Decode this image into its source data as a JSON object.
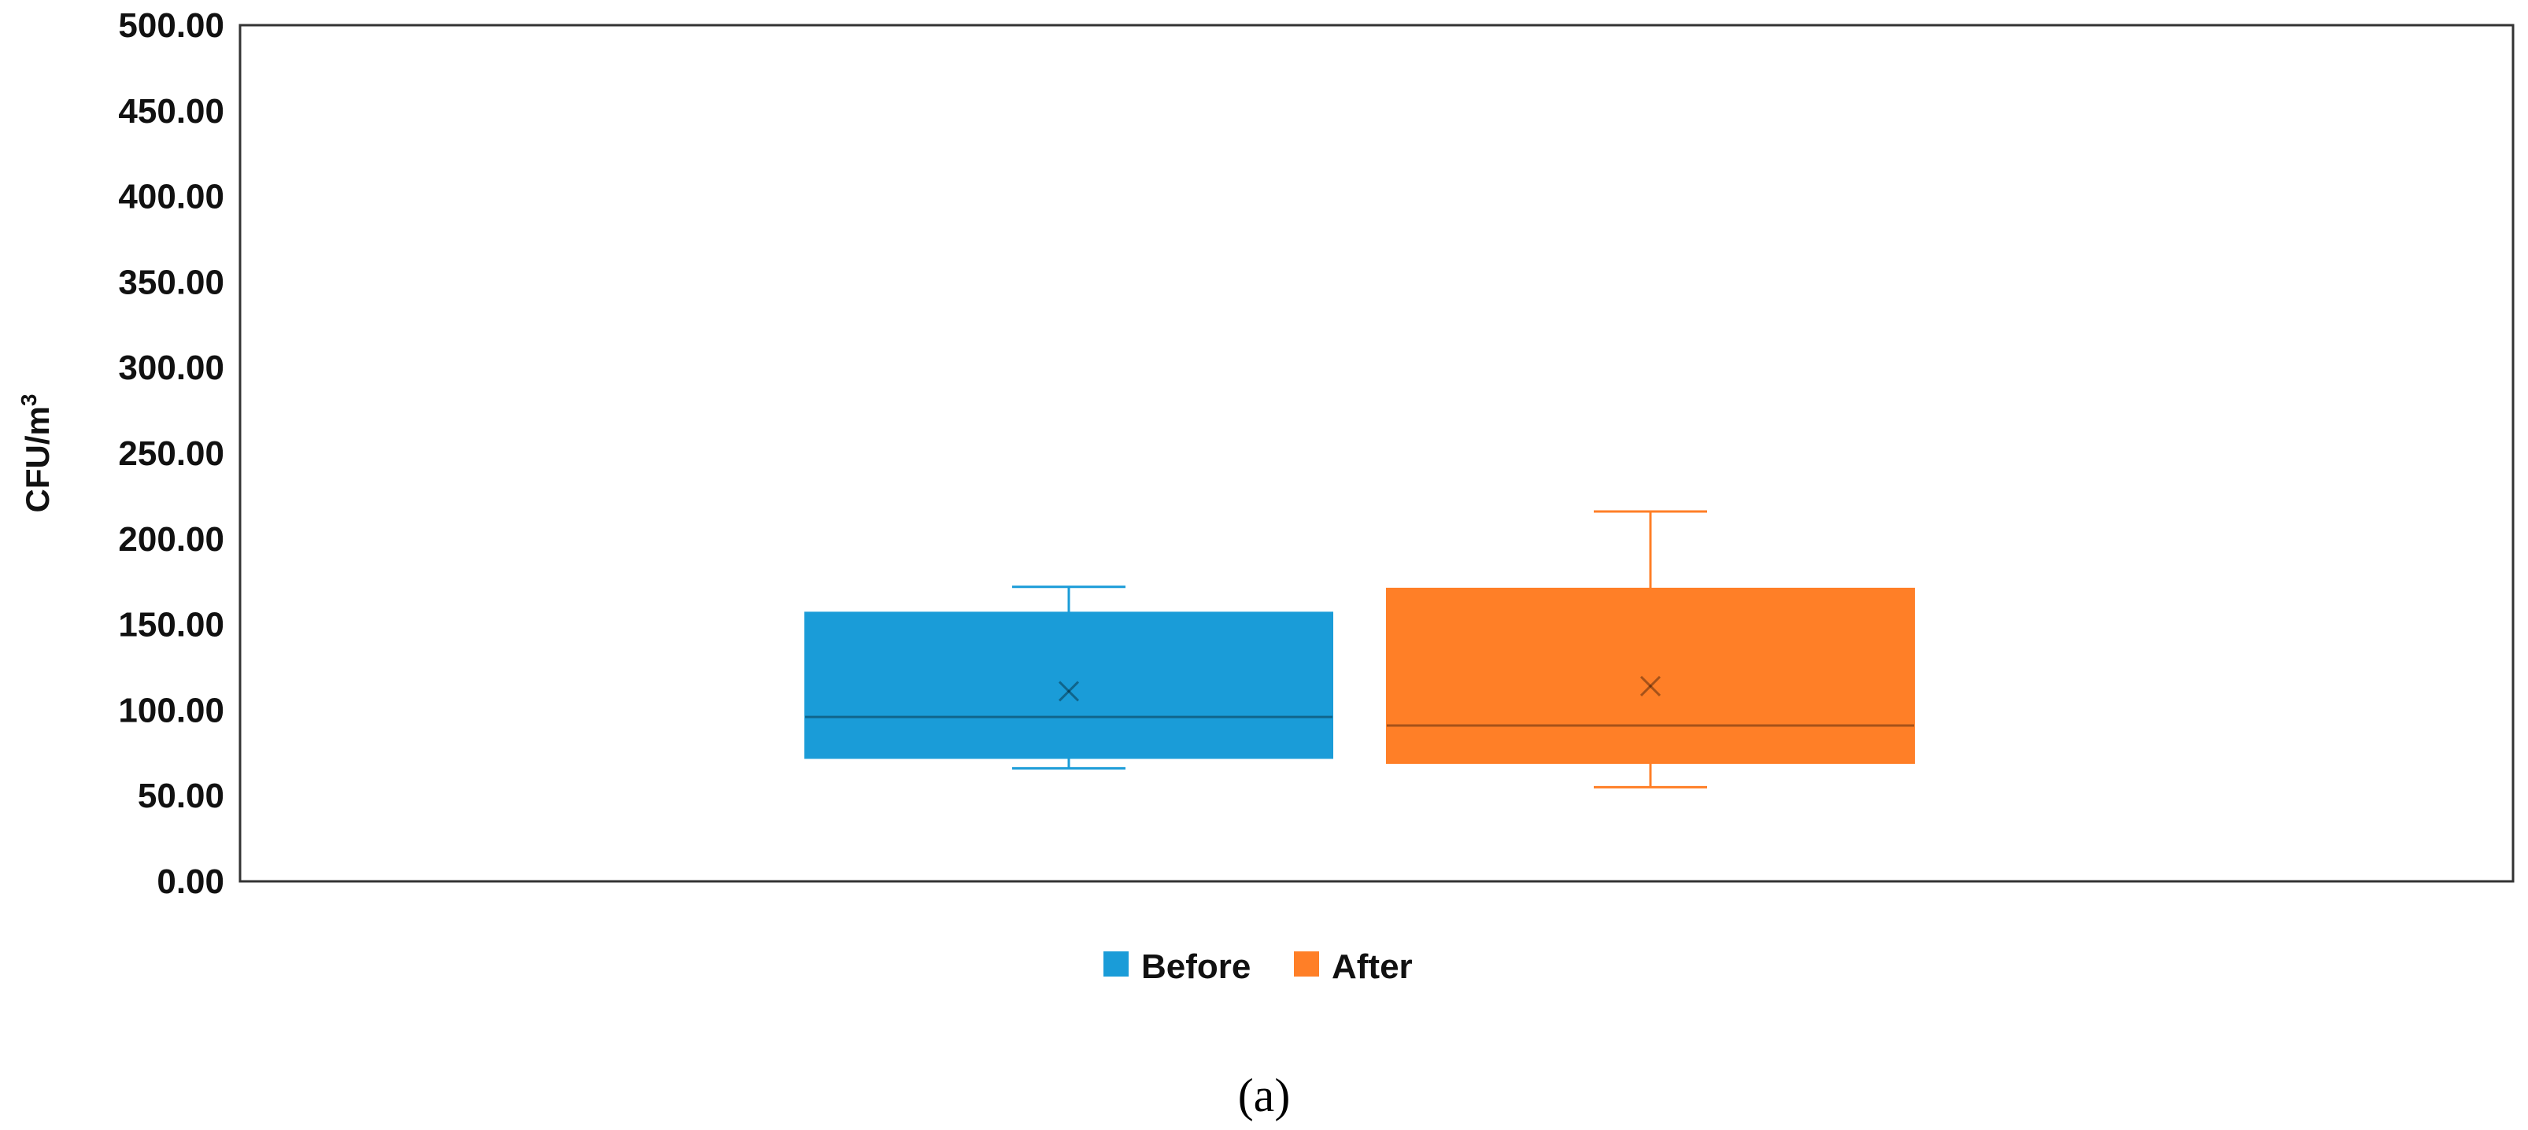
{
  "chart_data": {
    "type": "box",
    "ylabel": "CFU/m³",
    "ylabel_main": "CFU/m",
    "ylabel_sup": "3",
    "ylim": [
      0,
      500
    ],
    "yticks": [
      "0.00",
      "50.00",
      "100.00",
      "150.00",
      "200.00",
      "250.00",
      "300.00",
      "350.00",
      "400.00",
      "450.00",
      "500.00"
    ],
    "grid": false,
    "legend_position": "bottom-center",
    "series": [
      {
        "name": "Before",
        "color": "#1A9CD8",
        "min": 66,
        "q1": 72,
        "median": 96,
        "q3": 157,
        "max": 172,
        "mean": 111
      },
      {
        "name": "After",
        "color": "#FF7F27",
        "min": 55,
        "q1": 69,
        "median": 91,
        "q3": 171,
        "max": 216,
        "mean": 114
      }
    ],
    "panel_label": "(a)"
  }
}
